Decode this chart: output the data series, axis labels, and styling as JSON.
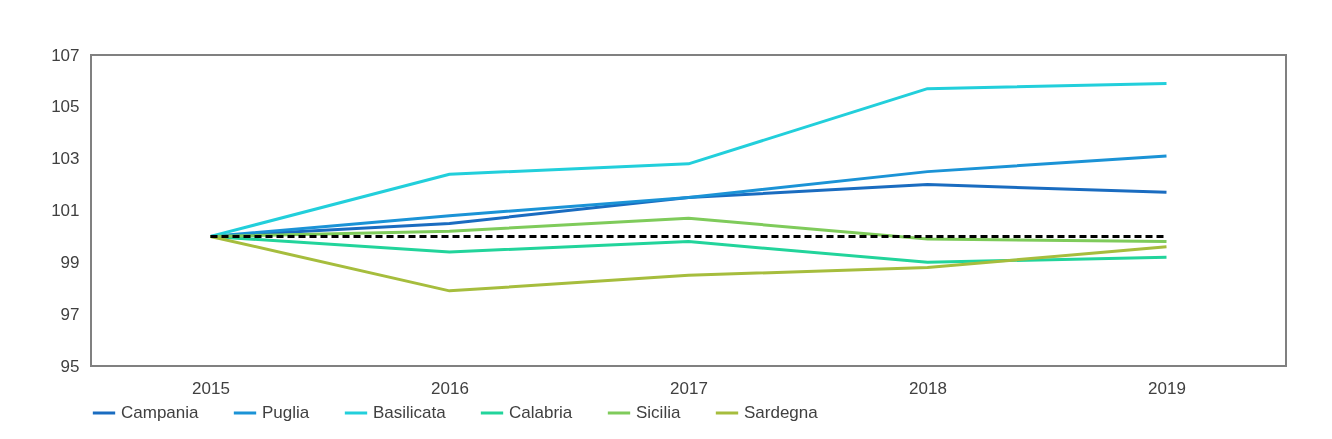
{
  "chart_data": {
    "type": "line",
    "categories": [
      "2015",
      "2016",
      "2017",
      "2018",
      "2019"
    ],
    "ylim": [
      95,
      107
    ],
    "yticks": [
      95,
      97,
      99,
      101,
      103,
      105,
      107
    ],
    "grid": false,
    "legend": "bottom",
    "marker": "none",
    "series": [
      {
        "name": "Campania",
        "color": "#1a6cc0",
        "values": [
          100,
          100.5,
          101.5,
          102.0,
          101.7
        ]
      },
      {
        "name": "Puglia",
        "color": "#1b93d6",
        "values": [
          100,
          100.8,
          101.5,
          102.5,
          103.1
        ]
      },
      {
        "name": "Basilicata",
        "color": "#22cfdb",
        "values": [
          100,
          102.4,
          102.8,
          105.7,
          105.9
        ]
      },
      {
        "name": "Calabria",
        "color": "#22d49b",
        "values": [
          100,
          99.4,
          99.8,
          99.0,
          99.2
        ]
      },
      {
        "name": "Sicilia",
        "color": "#7fcb5b",
        "values": [
          100,
          100.2,
          100.7,
          99.9,
          99.8
        ]
      },
      {
        "name": "Sardegna",
        "color": "#a6bd3d",
        "values": [
          100,
          97.9,
          98.5,
          98.8,
          99.6
        ]
      },
      {
        "color": "#000000",
        "line_style": "dashed",
        "values": [
          100,
          100,
          100,
          100,
          100
        ]
      }
    ]
  }
}
